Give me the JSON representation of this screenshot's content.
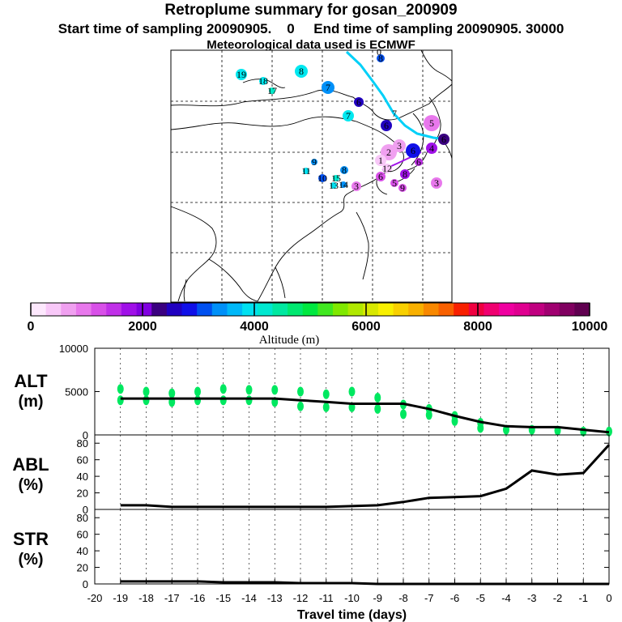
{
  "header": {
    "title": "Retroplume summary for gosan_200909",
    "sampling_line": "Start time of sampling 20090905.    0     End time of sampling 20090905. 30000",
    "met_line": "Meteorological data used is ECMWF"
  },
  "colorbar": {
    "label": "Altitude (m)",
    "ticks": [
      "0",
      "2000",
      "4000",
      "6000",
      "8000",
      "10000"
    ],
    "colors": [
      "#fde8fd",
      "#f8c8f8",
      "#f0a0f0",
      "#e878ec",
      "#d850e8",
      "#c030e8",
      "#a010e8",
      "#8000e0",
      "#3a0080",
      "#2000c0",
      "#1010e8",
      "#0050f0",
      "#0090f8",
      "#00b8f8",
      "#00e0f0",
      "#00e8d0",
      "#00e8a0",
      "#00e870",
      "#00e840",
      "#40e820",
      "#80e800",
      "#b0e800",
      "#d8e800",
      "#f8f000",
      "#f8d000",
      "#f8b000",
      "#f88800",
      "#f86000",
      "#f82000",
      "#f00040",
      "#f00070",
      "#f000a0",
      "#e00090",
      "#c00080",
      "#a00070",
      "#800060",
      "#600050"
    ]
  },
  "map": {
    "labels": [
      {
        "t": "19",
        "c": "#00e8f0",
        "r": 7
      },
      {
        "t": "18",
        "c": "#00e8f0",
        "r": 5
      },
      {
        "t": "17",
        "c": "#00e8c8",
        "r": 4
      },
      {
        "t": "8",
        "c": "#00e8f0",
        "r": 8
      },
      {
        "t": "7",
        "c": "#0090f8",
        "r": 8
      },
      {
        "t": "7",
        "c": "#00e8f0",
        "r": 7
      },
      {
        "t": "6",
        "c": "#2000c0",
        "r": 6
      },
      {
        "t": "8",
        "c": "#0050f0",
        "r": 5
      },
      {
        "t": "6",
        "c": "#2000c0",
        "r": 7
      },
      {
        "t": "7",
        "c": "none",
        "r": 0
      },
      {
        "t": "0",
        "c": "none",
        "r": 0
      },
      {
        "t": "5",
        "c": "#e878ec",
        "r": 10
      },
      {
        "t": "4",
        "c": "#a010e8",
        "r": 7
      },
      {
        "t": "6",
        "c": "#3a0080",
        "r": 7
      },
      {
        "t": "3",
        "c": "#f0a0f0",
        "r": 8
      },
      {
        "t": "2",
        "c": "#f0a0f0",
        "r": 10
      },
      {
        "t": "6",
        "c": "#1010e8",
        "r": 9
      },
      {
        "t": "1",
        "c": "#f8c8f8",
        "r": 7
      },
      {
        "t": "12",
        "c": "#f8c8f8",
        "r": 6
      },
      {
        "t": "8",
        "c": "#a010e8",
        "r": 6
      },
      {
        "t": "9",
        "c": "#0090f8",
        "r": 4
      },
      {
        "t": "11",
        "c": "#00e0f0",
        "r": 4
      },
      {
        "t": "8",
        "c": "#0090f8",
        "r": 5
      },
      {
        "t": "10",
        "c": "#0050f0",
        "r": 5
      },
      {
        "t": "15",
        "c": "#00e8d0",
        "r": 4
      },
      {
        "t": "13",
        "c": "#00e0f0",
        "r": 4
      },
      {
        "t": "14",
        "c": "#0090f8",
        "r": 4
      },
      {
        "t": "3",
        "c": "#e878ec",
        "r": 6
      },
      {
        "t": "6",
        "c": "#d850e8",
        "r": 6
      },
      {
        "t": "5",
        "c": "#d850e8",
        "r": 5
      },
      {
        "t": "9",
        "c": "#d850e8",
        "r": 5
      },
      {
        "t": "6",
        "c": "#c030e8",
        "r": 5
      },
      {
        "t": "3",
        "c": "#e878ec",
        "r": 7
      }
    ]
  },
  "chart_data": [
    {
      "type": "line",
      "panel": "ALT",
      "ylabel": "ALT",
      "yunit": "(m)",
      "ylim": [
        0,
        10000
      ],
      "yticks": [
        "0",
        "5000",
        "10000"
      ],
      "xlim": [
        -20,
        0
      ],
      "x": [
        -19,
        -18,
        -17,
        -16,
        -15,
        -14,
        -13,
        -12,
        -11,
        -10,
        -9,
        -8,
        -7,
        -6,
        -5,
        -4,
        -3,
        -2,
        -1,
        0
      ],
      "values": [
        4200,
        4200,
        4200,
        4200,
        4200,
        4200,
        4200,
        4000,
        3800,
        3600,
        3600,
        3600,
        3000,
        2200,
        1500,
        1000,
        900,
        900,
        600,
        300
      ],
      "scatter": [
        {
          "x": -19,
          "y": 4000
        },
        {
          "x": -19,
          "y": 5300
        },
        {
          "x": -18,
          "y": 4000
        },
        {
          "x": -18,
          "y": 5000
        },
        {
          "x": -17,
          "y": 3800
        },
        {
          "x": -17,
          "y": 4800
        },
        {
          "x": -16,
          "y": 4000
        },
        {
          "x": -16,
          "y": 5000
        },
        {
          "x": -15,
          "y": 4000
        },
        {
          "x": -15,
          "y": 5300
        },
        {
          "x": -14,
          "y": 4000
        },
        {
          "x": -14,
          "y": 5200
        },
        {
          "x": -13,
          "y": 3800
        },
        {
          "x": -13,
          "y": 5200
        },
        {
          "x": -12,
          "y": 3300
        },
        {
          "x": -12,
          "y": 5000
        },
        {
          "x": -11,
          "y": 3200
        },
        {
          "x": -11,
          "y": 4700
        },
        {
          "x": -10,
          "y": 3200
        },
        {
          "x": -10,
          "y": 5000
        },
        {
          "x": -9,
          "y": 3000
        },
        {
          "x": -9,
          "y": 4300
        },
        {
          "x": -8,
          "y": 3500
        },
        {
          "x": -8,
          "y": 2400
        },
        {
          "x": -7,
          "y": 3000
        },
        {
          "x": -7,
          "y": 2300
        },
        {
          "x": -6,
          "y": 2200
        },
        {
          "x": -6,
          "y": 1600
        },
        {
          "x": -5,
          "y": 1400
        },
        {
          "x": -5,
          "y": 800
        },
        {
          "x": -4,
          "y": 600
        },
        {
          "x": -3,
          "y": 600
        },
        {
          "x": -2,
          "y": 500
        },
        {
          "x": -1,
          "y": 400
        },
        {
          "x": 0,
          "y": 400
        }
      ]
    },
    {
      "type": "line",
      "panel": "ABL",
      "ylabel": "ABL",
      "yunit": "(%)",
      "ylim": [
        0,
        90
      ],
      "yticks": [
        "0",
        "20",
        "40",
        "60",
        "80"
      ],
      "xlim": [
        -20,
        0
      ],
      "x": [
        -19,
        -18,
        -17,
        -16,
        -15,
        -14,
        -13,
        -12,
        -11,
        -10,
        -9,
        -8,
        -7,
        -6,
        -5,
        -4,
        -3,
        -2,
        -1,
        0
      ],
      "values": [
        5,
        5,
        3,
        3,
        3,
        3,
        3,
        3,
        3,
        4,
        5,
        9,
        14,
        15,
        16,
        25,
        47,
        42,
        44,
        78
      ]
    },
    {
      "type": "line",
      "panel": "STR",
      "ylabel": "STR",
      "yunit": "(%)",
      "ylim": [
        0,
        90
      ],
      "yticks": [
        "0",
        "20",
        "40",
        "60",
        "80"
      ],
      "xlim": [
        -20,
        0
      ],
      "x": [
        -19,
        -18,
        -17,
        -16,
        -15,
        -14,
        -13,
        -12,
        -11,
        -10,
        -9,
        -8,
        -7,
        -6,
        -5,
        -4,
        -3,
        -2,
        -1,
        0
      ],
      "values": [
        3,
        3,
        3,
        3,
        2,
        2,
        2,
        1,
        1,
        1,
        0,
        0,
        0,
        0,
        0,
        0,
        0,
        0,
        0,
        0
      ],
      "xlabel": "Travel time (days)",
      "xticks": [
        "-20",
        "-19",
        "-18",
        "-17",
        "-16",
        "-15",
        "-14",
        "-13",
        "-12",
        "-11",
        "-10",
        "-9",
        "-8",
        "-7",
        "-6",
        "-5",
        "-4",
        "-3",
        "-2",
        "-1",
        "0"
      ]
    }
  ]
}
